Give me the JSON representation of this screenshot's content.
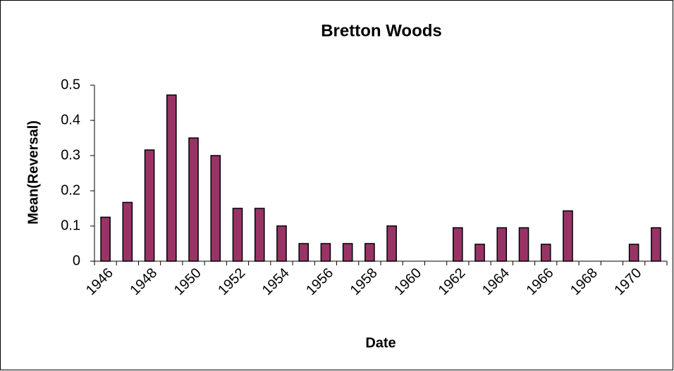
{
  "chart_data": {
    "type": "bar",
    "title": "Bretton Woods",
    "x_label": "Date",
    "y_label": "Mean(Reversal)",
    "categories": [
      "1946",
      null,
      "1948",
      null,
      "1950",
      null,
      "1952",
      null,
      "1954",
      null,
      "1956",
      null,
      "1958",
      null,
      "1960",
      null,
      "1962",
      null,
      "1964",
      null,
      "1966",
      null,
      "1968",
      null,
      "1970",
      null
    ],
    "values": [
      0.125,
      0.167,
      0.316,
      0.472,
      0.35,
      0.3,
      0.15,
      0.15,
      0.1,
      0.05,
      0.05,
      0.05,
      0.05,
      0.1,
      0,
      0,
      0.095,
      0.048,
      0.095,
      0.095,
      0.048,
      0.143,
      0,
      0,
      0.048,
      0.095
    ],
    "color": "#993366",
    "ylim": [
      0,
      0.5
    ],
    "yticks": [
      0,
      0.1,
      0.2,
      0.3,
      0.4,
      0.5
    ],
    "grid": false
  }
}
